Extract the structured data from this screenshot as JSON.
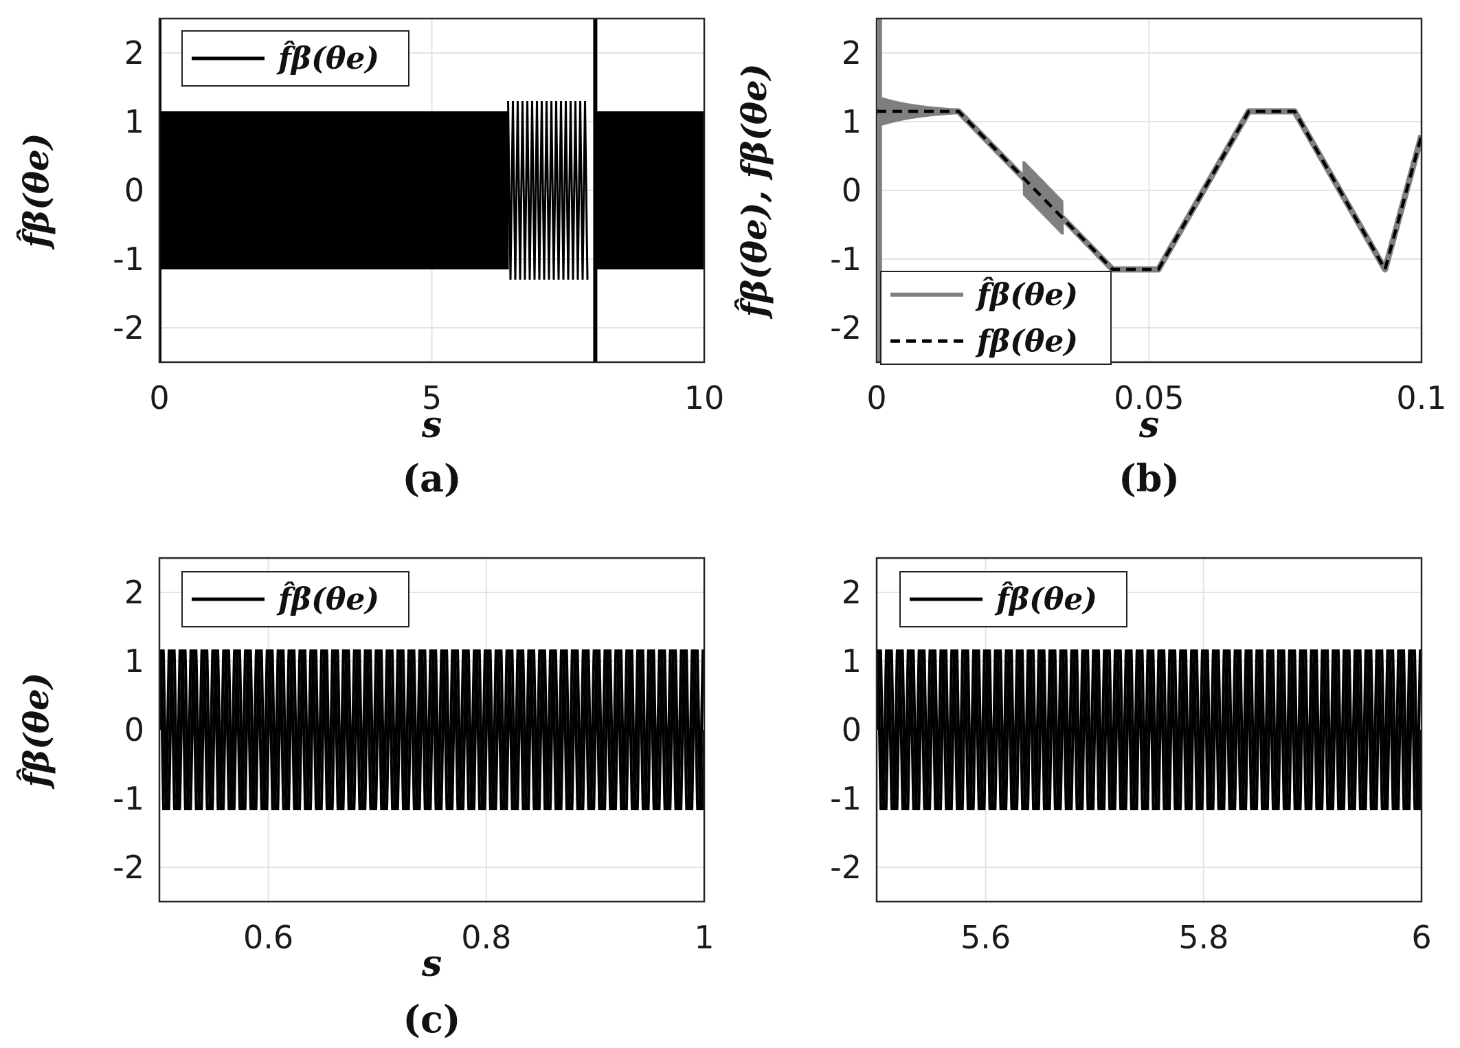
{
  "chart_data": [
    {
      "id": "a",
      "type": "line",
      "caption": "(a)",
      "xlabel": "s",
      "ylabel": "f̂β(θe)",
      "xlim": [
        0,
        10
      ],
      "ylim": [
        -2.5,
        2.5
      ],
      "xticks": [
        0,
        5,
        10
      ],
      "xtick_labels": [
        "0",
        "5",
        "10"
      ],
      "yticks": [
        -2,
        -1,
        0,
        1,
        2
      ],
      "ytick_labels": [
        "-2",
        "-1",
        "0",
        "1",
        "2"
      ],
      "grid": true,
      "legend": {
        "position": "top-left",
        "entries": [
          "f̂β(θe)"
        ]
      },
      "series": [
        {
          "name": "f̂β(θe)",
          "color": "#000000",
          "style": "solid",
          "description_of_signal": "dense oscillation",
          "envelope": [
            {
              "x_start": 0,
              "x_end": 6.4,
              "min": -1.15,
              "max": 1.15
            },
            {
              "x_start": 6.4,
              "x_end": 7.9,
              "min": -1.3,
              "max": 1.3
            },
            {
              "x_start": 8.0,
              "x_end": 10,
              "min": -1.15,
              "max": 1.15
            }
          ],
          "spikes": [
            {
              "x": 0.0,
              "min": -2.5,
              "max": 2.5
            },
            {
              "x": 8.0,
              "min": -2.5,
              "max": 2.5
            }
          ]
        }
      ]
    },
    {
      "id": "b",
      "type": "line",
      "caption": "(b)",
      "xlabel": "s",
      "ylabel": "f̂β(θe), fβ(θe)",
      "xlim": [
        0,
        0.1
      ],
      "ylim": [
        -2.5,
        2.5
      ],
      "xticks": [
        0,
        0.05,
        0.1
      ],
      "xtick_labels": [
        "0",
        "0.05",
        "0.1"
      ],
      "yticks": [
        -2,
        -1,
        0,
        1,
        2
      ],
      "ytick_labels": [
        "-2",
        "-1",
        "0",
        "1",
        "2"
      ],
      "grid": true,
      "legend": {
        "position": "bottom-left",
        "entries": [
          "f̂β(θe)",
          "fβ(θe)"
        ]
      },
      "series": [
        {
          "name": "f̂β(θe)",
          "color": "#7f7f7f",
          "style": "solid",
          "x": [
            0,
            0.015,
            0.0433,
            0.0517,
            0.0683,
            0.0767,
            0.0933,
            0.1
          ],
          "y": [
            1.15,
            1.15,
            -1.15,
            -1.15,
            1.15,
            1.15,
            -1.15,
            0.8
          ]
        },
        {
          "name": "fβ(θe)",
          "color": "#000000",
          "style": "dashed",
          "x": [
            0,
            0.015,
            0.0433,
            0.0517,
            0.0683,
            0.0767,
            0.0933,
            0.1
          ],
          "y": [
            1.15,
            1.15,
            -1.15,
            -1.15,
            1.15,
            1.15,
            -1.15,
            0.8
          ]
        }
      ]
    },
    {
      "id": "c",
      "type": "line",
      "caption": "(c)",
      "xlabel": "s",
      "ylabel": "f̂β(θe)",
      "xlim": [
        0.5,
        1
      ],
      "ylim": [
        -2.5,
        2.5
      ],
      "xticks": [
        0.6,
        0.8,
        1
      ],
      "xtick_labels": [
        "0.6",
        "0.8",
        "1"
      ],
      "yticks": [
        -2,
        -1,
        0,
        1,
        2
      ],
      "ytick_labels": [
        "-2",
        "-1",
        "0",
        "1",
        "2"
      ],
      "grid": true,
      "legend": {
        "position": "top-left",
        "entries": [
          "f̂β(θe)"
        ]
      },
      "series": [
        {
          "name": "f̂β(θe)",
          "color": "#000000",
          "style": "solid",
          "amplitude": 1.15,
          "cycles_in_window": 50
        }
      ]
    },
    {
      "id": "d",
      "type": "line",
      "caption": "",
      "xlabel": "",
      "ylabel": "",
      "xlim": [
        5.5,
        6
      ],
      "ylim": [
        -2.5,
        2.5
      ],
      "xticks": [
        5.6,
        5.8,
        6
      ],
      "xtick_labels": [
        "5.6",
        "5.8",
        "6"
      ],
      "yticks": [
        -2,
        -1,
        0,
        1,
        2
      ],
      "ytick_labels": [
        "-2",
        "-1",
        "0",
        "1",
        "2"
      ],
      "grid": true,
      "legend": {
        "position": "top-left",
        "entries": [
          "f̂β(θe)"
        ]
      },
      "series": [
        {
          "name": "f̂β(θe)",
          "color": "#000000",
          "style": "solid",
          "amplitude": 1.15,
          "cycles_in_window": 50
        }
      ]
    }
  ]
}
